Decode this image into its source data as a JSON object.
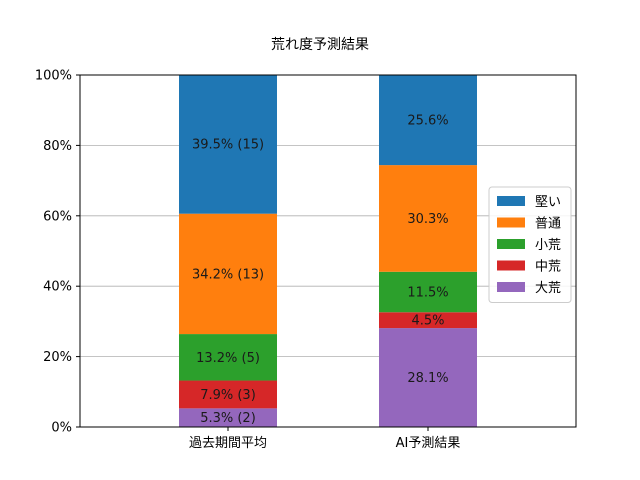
{
  "chart_data": {
    "type": "bar",
    "stacked": true,
    "title": "荒れ度予測結果",
    "xlabel": "",
    "ylabel": "",
    "categories": [
      "過去期間平均",
      "AI予測結果"
    ],
    "ylim": [
      0,
      100
    ],
    "yticks": [
      0,
      20,
      40,
      60,
      80,
      100
    ],
    "ytick_labels": [
      "0%",
      "20%",
      "40%",
      "60%",
      "80%",
      "100%"
    ],
    "grid": "y",
    "legend_position": "right",
    "series": [
      {
        "name": "大荒",
        "color": "#9467bd",
        "values": [
          5.3,
          28.1
        ],
        "labels": [
          "5.3% (2)",
          "28.1%"
        ]
      },
      {
        "name": "中荒",
        "color": "#d62728",
        "values": [
          7.9,
          4.5
        ],
        "labels": [
          "7.9% (3)",
          "4.5%"
        ]
      },
      {
        "name": "小荒",
        "color": "#2ca02c",
        "values": [
          13.2,
          11.5
        ],
        "labels": [
          "13.2% (5)",
          "11.5%"
        ]
      },
      {
        "name": "普通",
        "color": "#ff7f0e",
        "values": [
          34.2,
          30.3
        ],
        "labels": [
          "34.2% (13)",
          "30.3%"
        ]
      },
      {
        "name": "堅い",
        "color": "#1f77b4",
        "values": [
          39.5,
          25.6
        ],
        "labels": [
          "39.5% (15)",
          "25.6%"
        ]
      }
    ],
    "legend_order": [
      "堅い",
      "普通",
      "小荒",
      "中荒",
      "大荒"
    ]
  }
}
